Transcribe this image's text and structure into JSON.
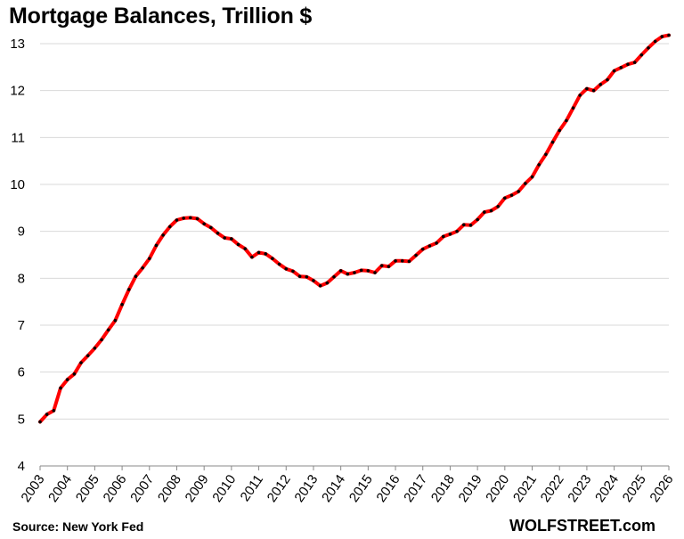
{
  "chart_data": {
    "type": "line",
    "title": "Mortgage Balances, Trillion $",
    "xlabel": "",
    "ylabel": "",
    "ylim": [
      4,
      13
    ],
    "yticks": [
      "4",
      "5",
      "6",
      "7",
      "8",
      "9",
      "10",
      "11",
      "12",
      "13"
    ],
    "xticks": [
      "2003",
      "2004",
      "2005",
      "2006",
      "2007",
      "2008",
      "2009",
      "2010",
      "2011",
      "2012",
      "2013",
      "2014",
      "2015",
      "2016",
      "2017",
      "2018",
      "2019",
      "2020",
      "2021",
      "2022",
      "2023",
      "2024",
      "2025",
      "2026"
    ],
    "xlim": [
      2003,
      2026
    ],
    "grid": "horizontal",
    "line_color": "#ff0000",
    "marker_color": "#000000",
    "series": [
      {
        "x": [
          2003.0,
          2003.25,
          2003.5,
          2003.75,
          2004.0,
          2004.25,
          2004.5,
          2004.75,
          2005.0,
          2005.25,
          2005.5,
          2005.75,
          2006.0,
          2006.25,
          2006.5,
          2006.75,
          2007.0,
          2007.25,
          2007.5,
          2007.75,
          2008.0,
          2008.25,
          2008.5,
          2008.75,
          2009.0,
          2009.25,
          2009.5,
          2009.75,
          2010.0,
          2010.25,
          2010.5,
          2010.75,
          2011.0,
          2011.25,
          2011.5,
          2011.75,
          2012.0,
          2012.25,
          2012.5,
          2012.75,
          2013.0,
          2013.25,
          2013.5,
          2013.75,
          2014.0,
          2014.25,
          2014.5,
          2014.75,
          2015.0,
          2015.25,
          2015.5,
          2015.75,
          2016.0,
          2016.25,
          2016.5,
          2016.75,
          2017.0,
          2017.25,
          2017.5,
          2017.75,
          2018.0,
          2018.25,
          2018.5,
          2018.75,
          2019.0,
          2019.25,
          2019.5,
          2019.75,
          2020.0,
          2020.25,
          2020.5,
          2020.75,
          2021.0,
          2021.25,
          2021.5,
          2021.75,
          2022.0,
          2022.25,
          2022.5,
          2022.75,
          2023.0,
          2023.25,
          2023.5,
          2023.75,
          2024.0,
          2024.25,
          2024.5,
          2024.75,
          2025.0,
          2025.25,
          2025.5,
          2025.75,
          2026.0
        ],
        "values": [
          4.94,
          5.1,
          5.18,
          5.66,
          5.84,
          5.96,
          6.2,
          6.35,
          6.51,
          6.69,
          6.9,
          7.1,
          7.44,
          7.76,
          8.04,
          8.22,
          8.42,
          8.7,
          8.92,
          9.1,
          9.24,
          9.28,
          9.29,
          9.27,
          9.16,
          9.08,
          8.96,
          8.86,
          8.84,
          8.72,
          8.63,
          8.45,
          8.55,
          8.52,
          8.42,
          8.3,
          8.2,
          8.15,
          8.04,
          8.03,
          7.95,
          7.84,
          7.9,
          8.03,
          8.16,
          8.09,
          8.12,
          8.17,
          8.16,
          8.12,
          8.27,
          8.25,
          8.37,
          8.37,
          8.36,
          8.49,
          8.62,
          8.69,
          8.75,
          8.89,
          8.94,
          9.0,
          9.14,
          9.13,
          9.25,
          9.41,
          9.44,
          9.53,
          9.71,
          9.77,
          9.85,
          10.02,
          10.16,
          10.42,
          10.64,
          10.9,
          11.15,
          11.36,
          11.63,
          11.9,
          12.04,
          12.0,
          12.13,
          12.23,
          12.42,
          12.49,
          12.56,
          12.6,
          12.76,
          12.91,
          13.05,
          13.15,
          13.18
        ]
      }
    ]
  },
  "source_text": "Source: New York Fed",
  "brand_text": "WOLFSTREET.com"
}
